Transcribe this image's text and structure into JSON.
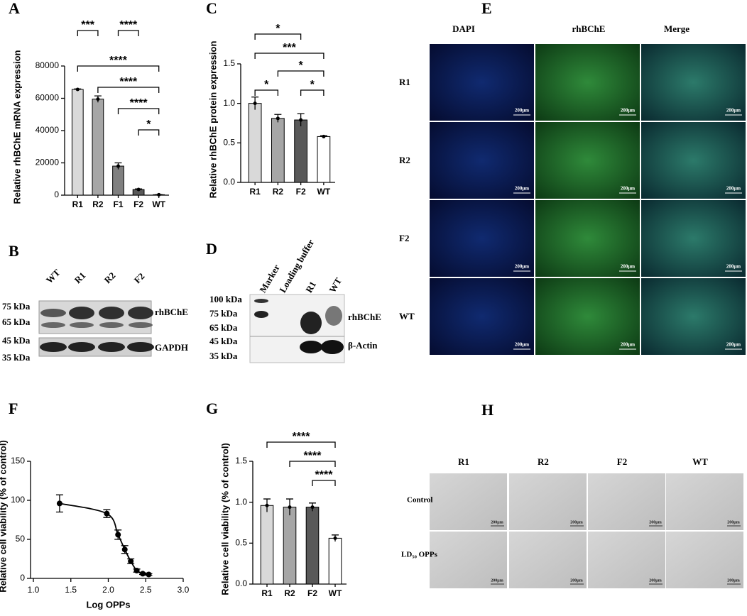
{
  "chart_data": [
    {
      "type": "bar",
      "label": "A",
      "ylabel": "Relative rhBChE mRNA expression",
      "categories": [
        "R1",
        "R2",
        "F1",
        "F2",
        "WT"
      ],
      "values": [
        65500,
        59500,
        18000,
        3500,
        300
      ],
      "errors": [
        300,
        2000,
        2000,
        400,
        100
      ],
      "colors": [
        "#d9d9d9",
        "#a6a6a6",
        "#808080",
        "#595959",
        "#ffffff"
      ],
      "ylim": [
        0,
        80000
      ],
      "yticks": [
        0,
        20000,
        40000,
        60000,
        80000
      ],
      "annotations": [
        {
          "label": "***",
          "from": "R1",
          "to": "R2"
        },
        {
          "label": "****",
          "from": "F1",
          "to": "F2"
        },
        {
          "label": "****",
          "from": "R1",
          "to": "WT"
        },
        {
          "label": "****",
          "from": "R2",
          "to": "WT"
        },
        {
          "label": "****",
          "from": "F1",
          "to": "WT"
        },
        {
          "label": "*",
          "from": "F2",
          "to": "WT"
        }
      ]
    },
    {
      "type": "bar",
      "label": "C",
      "ylabel": "Relative rhBChE protein expression",
      "categories": [
        "R1",
        "R2",
        "F2",
        "WT"
      ],
      "values": [
        1.0,
        0.81,
        0.79,
        0.58
      ],
      "errors": [
        0.08,
        0.05,
        0.08,
        0.01
      ],
      "colors": [
        "#d9d9d9",
        "#a6a6a6",
        "#595959",
        "#ffffff"
      ],
      "ylim": [
        0,
        1.5
      ],
      "yticks": [
        {
          "value": 0,
          "label": "0.0"
        },
        0.5,
        {
          "value": 1,
          "label": "1.0"
        },
        1.5
      ],
      "annotations": [
        {
          "label": "*",
          "from": "R1",
          "to": "F2"
        },
        {
          "label": "***",
          "from": "R1",
          "to": "WT"
        },
        {
          "label": "*",
          "from": "R2",
          "to": "WT"
        },
        {
          "label": "*",
          "from": "R1",
          "to": "R2"
        },
        {
          "label": "*",
          "from": "F2",
          "to": "WT"
        }
      ]
    },
    {
      "type": "line",
      "label": "F",
      "ylabel": "Relative cell viability (% of control)",
      "xlabel": "Log OPPs",
      "x": [
        1.35,
        1.98,
        2.13,
        2.22,
        2.3,
        2.38,
        2.46,
        2.54
      ],
      "values": [
        96,
        83,
        56,
        37,
        22,
        10,
        6,
        5
      ],
      "errors": [
        11,
        5,
        6,
        5,
        3,
        2,
        1,
        1
      ],
      "xlim": [
        1.0,
        3.0
      ],
      "xticks": [
        {
          "value": 1,
          "label": "1.0"
        },
        1.5,
        {
          "value": 2,
          "label": "2.0"
        },
        2.5,
        {
          "value": 3,
          "label": "3.0"
        }
      ],
      "ylim": [
        0,
        150
      ],
      "yticks": [
        0,
        50,
        100,
        150
      ],
      "color": "#000000"
    },
    {
      "type": "bar",
      "label": "G",
      "ylabel": "Relative cell viability  (% of control)",
      "categories": [
        "R1",
        "R2",
        "F2",
        "WT"
      ],
      "values": [
        0.96,
        0.94,
        0.94,
        0.56
      ],
      "errors": [
        0.08,
        0.1,
        0.05,
        0.04
      ],
      "colors": [
        "#d9d9d9",
        "#a6a6a6",
        "#595959",
        "#ffffff"
      ],
      "ylim": [
        0,
        1.5
      ],
      "yticks": [
        {
          "value": 0,
          "label": "0.0"
        },
        0.5,
        {
          "value": 1,
          "label": "1.0"
        },
        1.5
      ],
      "annotations": [
        {
          "label": "****",
          "from": "R1",
          "to": "WT"
        },
        {
          "label": "****",
          "from": "R2",
          "to": "WT"
        },
        {
          "label": "****",
          "from": "F2",
          "to": "WT"
        }
      ]
    }
  ],
  "panels": {
    "B": {
      "label": "B",
      "lanes": [
        "WT",
        "R1",
        "R2",
        "F2"
      ],
      "markers": [
        "75 kDa",
        "65 kDa",
        "45 kDa",
        "35 kDa"
      ],
      "bands": [
        "rhBChE",
        "GAPDH"
      ]
    },
    "D": {
      "label": "D",
      "lanes": [
        "Marker",
        "Loading buffer",
        "R1",
        "WT"
      ],
      "markers": [
        "100 kDa",
        "75 kDa",
        "65 kDa",
        "45 kDa",
        "35 kDa"
      ],
      "bands": [
        "rhBChE",
        "β-Actin"
      ]
    },
    "E": {
      "label": "E",
      "columns": [
        "DAPI",
        "rhBChE",
        "Merge"
      ],
      "rows": [
        "R1",
        "R2",
        "F2",
        "WT"
      ],
      "scale_bar": "200μm"
    },
    "H": {
      "label": "H",
      "columns": [
        "R1",
        "R2",
        "F2",
        "WT"
      ],
      "rows": [
        "Control",
        "LD₅₀ OPPs"
      ],
      "scale_bar": "200μm"
    }
  }
}
